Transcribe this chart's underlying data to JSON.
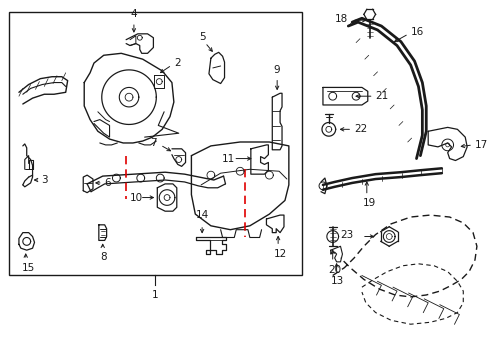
{
  "bg_color": "#ffffff",
  "line_color": "#1a1a1a",
  "red_color": "#e00000",
  "fig_width": 4.89,
  "fig_height": 3.6,
  "dpi": 100
}
